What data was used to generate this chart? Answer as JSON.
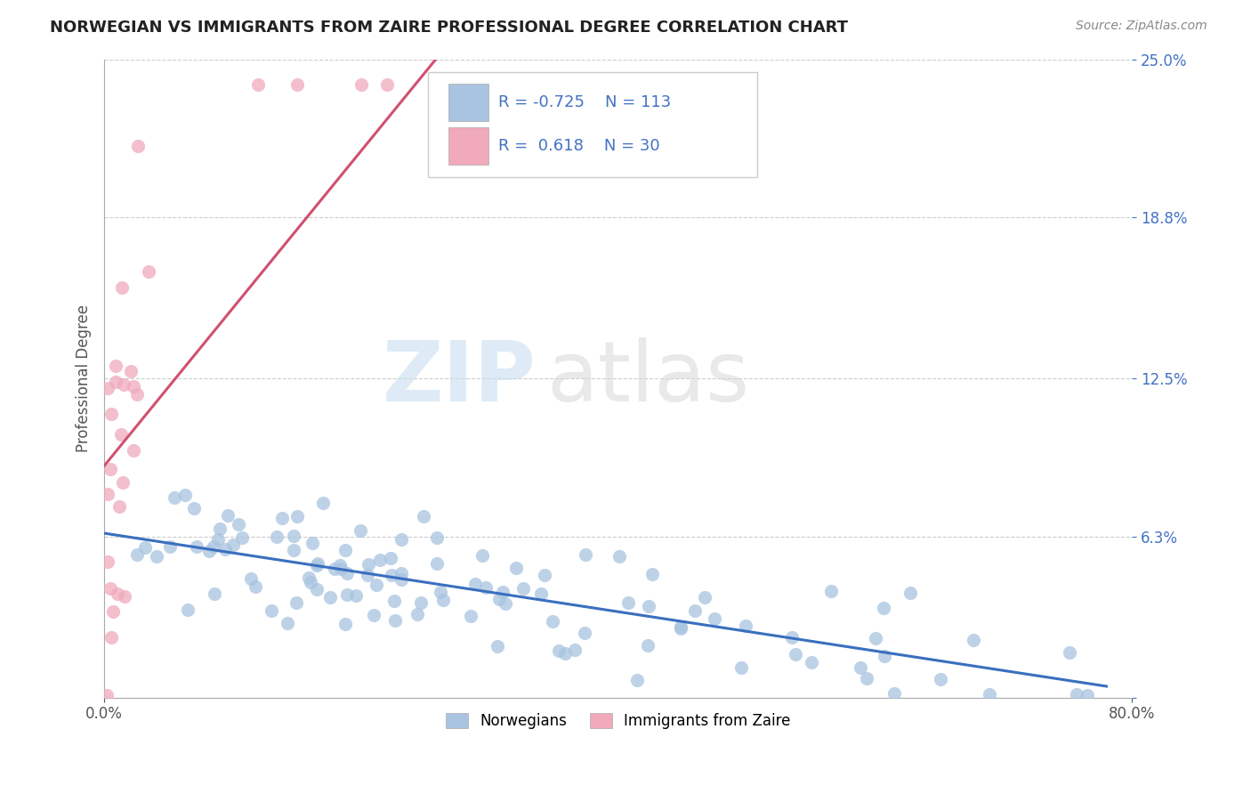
{
  "title": "NORWEGIAN VS IMMIGRANTS FROM ZAIRE PROFESSIONAL DEGREE CORRELATION CHART",
  "source": "Source: ZipAtlas.com",
  "ylabel": "Professional Degree",
  "xlim": [
    0.0,
    0.8
  ],
  "ylim": [
    0.0,
    0.25
  ],
  "ytick_vals": [
    0.0,
    0.063,
    0.125,
    0.188,
    0.25
  ],
  "ytick_labels": [
    "",
    "6.3%",
    "12.5%",
    "18.8%",
    "25.0%"
  ],
  "norwegian_color": "#a8c4e0",
  "norwegian_edge": "#7aafd4",
  "zaire_color": "#f0aabb",
  "zaire_edge": "#e07090",
  "norwegian_line_color": "#3a6fbf",
  "zaire_line_color": "#d05070",
  "R_norwegian": -0.725,
  "N_norwegian": 113,
  "R_zaire": 0.618,
  "N_zaire": 30,
  "legend_label1": "Norwegians",
  "legend_label2": "Immigrants from Zaire",
  "watermark_zip": "ZIP",
  "watermark_atlas": "atlas",
  "background_color": "#ffffff",
  "grid_color": "#cccccc",
  "tick_color_y": "#4472c4",
  "tick_color_x": "#555555",
  "title_color": "#222222",
  "source_color": "#888888",
  "ylabel_color": "#555555"
}
